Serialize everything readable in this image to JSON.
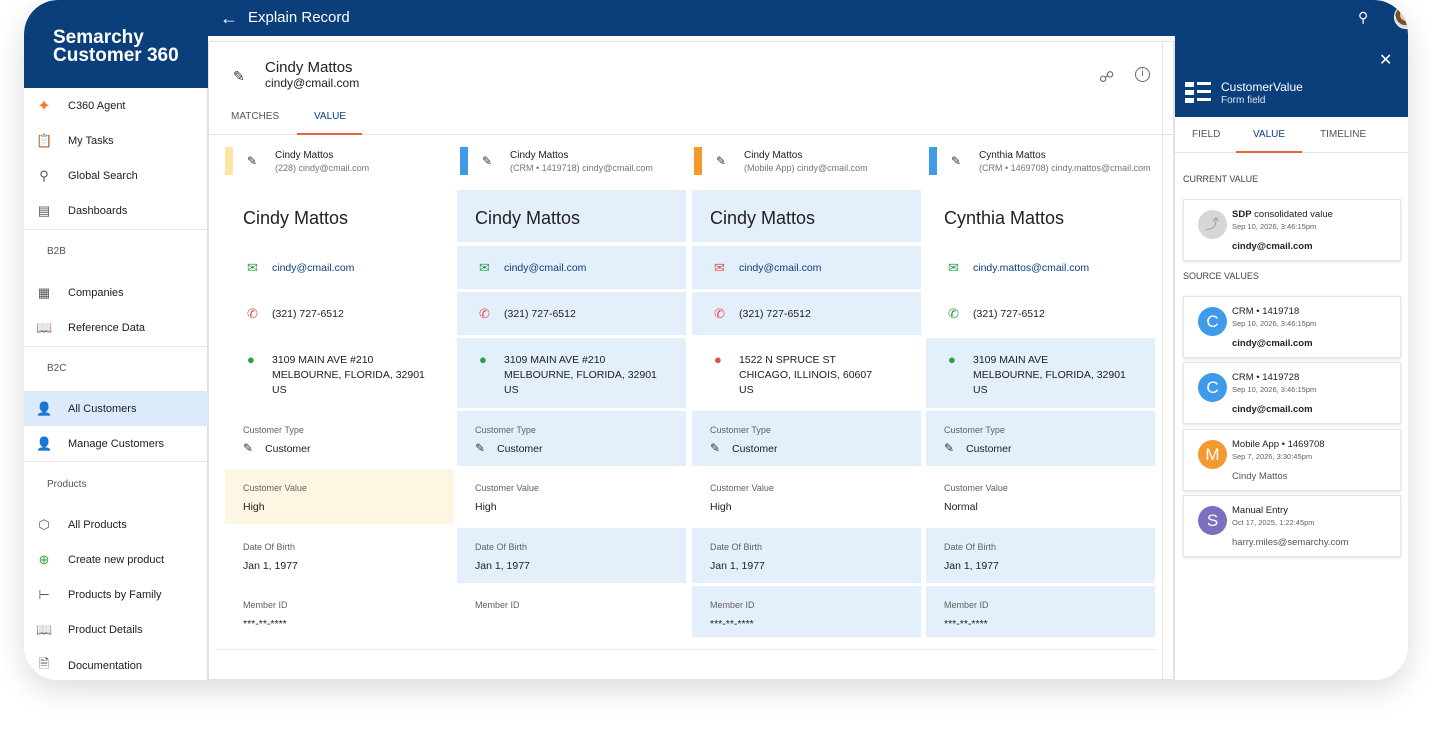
{
  "brand": {
    "line1": "Semarchy",
    "line2": "Customer 360"
  },
  "appbar": {
    "title": "Explain Record"
  },
  "sidebar": {
    "items": [
      {
        "label": "C360 Agent"
      },
      {
        "label": "My Tasks"
      },
      {
        "label": "Global Search"
      },
      {
        "label": "Dashboards"
      },
      {
        "label": "Companies"
      },
      {
        "label": "Reference Data"
      },
      {
        "label": "All Customers"
      },
      {
        "label": "Manage Customers"
      },
      {
        "label": "All Products"
      },
      {
        "label": "Create new product"
      },
      {
        "label": "Products by Family"
      },
      {
        "label": "Product Details"
      },
      {
        "label": "Documentation"
      }
    ],
    "sections": [
      "B2B",
      "B2C",
      "Products"
    ]
  },
  "record": {
    "name": "Cindy Mattos",
    "email": "cindy@cmail.com"
  },
  "tabs": [
    "MATCHES",
    "VALUE"
  ],
  "columns": [
    {
      "head_name": "Cindy Mattos",
      "head_sub": "(228) cindy@cmail.com",
      "color": "#fbe7a1",
      "name": "Cindy Mattos",
      "email": "cindy@cmail.com",
      "phone": "(321) 727-6512",
      "addr1": "3109 MAIN AVE #210",
      "addr2": "MELBOURNE, FLORIDA, 32901",
      "addr3": "US",
      "ctype_label": "Customer Type",
      "ctype": "Customer",
      "cvalue_label": "Customer Value",
      "cvalue": "High",
      "dob_label": "Date Of Birth",
      "dob": "Jan 1, 1977",
      "mid_label": "Member ID",
      "mid": "***-**-****"
    },
    {
      "head_name": "Cindy Mattos",
      "head_sub": "(CRM • 1419718) cindy@cmail.com",
      "color": "#3d9be9",
      "name": "Cindy Mattos",
      "email": "cindy@cmail.com",
      "phone": "(321) 727-6512",
      "addr1": "3109 MAIN AVE #210",
      "addr2": "MELBOURNE, FLORIDA, 32901",
      "addr3": "US",
      "ctype_label": "Customer Type",
      "ctype": "Customer",
      "cvalue_label": "Customer Value",
      "cvalue": "High",
      "dob_label": "Date Of Birth",
      "dob": "Jan 1, 1977",
      "mid_label": "Member ID",
      "mid": ""
    },
    {
      "head_name": "Cindy Mattos",
      "head_sub": "(Mobile App) cindy@cmail.com",
      "color": "#f29a2e",
      "name": "Cindy Mattos",
      "email": "cindy@cmail.com",
      "phone": "(321) 727-6512",
      "addr1": "1522 N SPRUCE ST",
      "addr2": "CHICAGO, ILLINOIS, 60607",
      "addr3": "US",
      "ctype_label": "Customer Type",
      "ctype": "Customer",
      "cvalue_label": "Customer Value",
      "cvalue": "High",
      "dob_label": "Date Of Birth",
      "dob": "Jan 1, 1977",
      "mid_label": "Member ID",
      "mid": "***-**-****"
    },
    {
      "head_name": "Cynthia Mattos",
      "head_sub": "(CRM • 1469708) cindy.mattos@cmail.com",
      "color": "#3d9be9",
      "name": "Cynthia Mattos",
      "email": "cindy.mattos@cmail.com",
      "phone": "(321) 727-6512",
      "addr1": "3109 MAIN AVE",
      "addr2": "MELBOURNE, FLORIDA, 32901",
      "addr3": "US",
      "ctype_label": "Customer Type",
      "ctype": "Customer",
      "cvalue_label": "Customer Value",
      "cvalue": "Normal",
      "dob_label": "Date Of Birth",
      "dob": "Jan 1, 1977",
      "mid_label": "Member ID",
      "mid": "***-**-****"
    }
  ],
  "panel": {
    "title": "CustomerValue",
    "subtitle": "Form field",
    "tabs": [
      "FIELD",
      "VALUE",
      "TIMELINE"
    ],
    "current_label": "CURRENT VALUE",
    "sources_label": "SOURCE VALUES",
    "current": {
      "bold": "SDP",
      "rest": " consolidated value",
      "time": "Sep 10, 2026, 3:46:15pm",
      "value": "cindy@cmail.com"
    },
    "sources": [
      {
        "letter": "C",
        "color": "#3d9be9",
        "source": "CRM • 1419718",
        "time": "Sep 10, 2026, 3:46:15pm",
        "value": "cindy@cmail.com",
        "bold": true
      },
      {
        "letter": "C",
        "color": "#3d9be9",
        "source": "CRM • 1419728",
        "time": "Sep 10, 2026, 3:46:15pm",
        "value": "cindy@cmail.com",
        "bold": true
      },
      {
        "letter": "M",
        "color": "#f29a2e",
        "source": "Mobile App • 1469708",
        "time": "Sep 7, 2026, 3:30:45pm",
        "value": "Cindy Mattos",
        "bold": false
      },
      {
        "letter": "S",
        "color": "#7b6fc0",
        "source": "Manual Entry",
        "time": "Oct 17, 2025, 1:22:45pm",
        "value": "harry.miles@semarchy.com",
        "bold": false
      }
    ]
  }
}
